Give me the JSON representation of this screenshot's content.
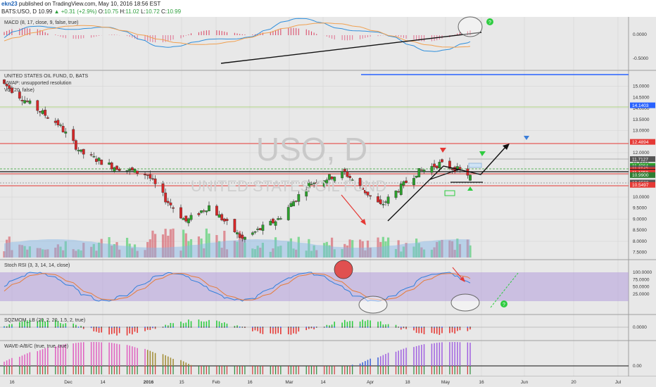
{
  "header": {
    "author": "ekn23",
    "published": "published on TradingView.com, May 10, 2016 18:56 EST",
    "symbol": "BATS:USO, D",
    "last": "10.99",
    "change": "+0.31 (+2.9%)",
    "open_label": "O:",
    "open": "10.75",
    "high_label": "H:",
    "high": "11.02",
    "low_label": "L:",
    "low": "10.72",
    "close_label": "C:",
    "close": "10.99"
  },
  "watermark": {
    "line1": "USO, D",
    "line2": "UNITED STATES OIL FUND"
  },
  "panes": {
    "macd": {
      "label": "MACD (8, 17, close, 9, false, true)",
      "ticks": [
        "0.0000",
        "-0.5000"
      ]
    },
    "price": {
      "labels": [
        "UNITED STATES OIL FUND, D, BATS",
        "VWAP: unsupported resolution",
        "Vol (20, false)"
      ],
      "ticks": [
        "15.0000",
        "14.5000",
        "14.0000",
        "13.5000",
        "13.0000",
        "12.5000",
        "12.0000",
        "11.5000",
        "11.0000",
        "10.5000",
        "10.0000",
        "9.5000",
        "9.0000",
        "8.5000",
        "8.0000",
        "7.5000"
      ],
      "tags": [
        {
          "text": "14.1403",
          "color": "#2962ff"
        },
        {
          "text": "12.4894",
          "color": "#e53935"
        },
        {
          "text": "11.7127",
          "color": "#555555"
        },
        {
          "text": "11.4064",
          "color": "#2ca02c"
        },
        {
          "text": "11.2945",
          "color": "#555555"
        },
        {
          "text": "11.2134",
          "color": "#e53935"
        },
        {
          "text": "11.1398",
          "color": "#111111"
        },
        {
          "text": "11.1058",
          "color": "#e53935"
        },
        {
          "text": "10.9900",
          "color": "#2e7d32"
        },
        {
          "text": "10.6530",
          "color": "#555555"
        },
        {
          "text": "10.5497",
          "color": "#e53935"
        }
      ]
    },
    "stoch": {
      "label": "Stoch RSI (3, 3, 14, 14, close)",
      "ticks": [
        "100.0000",
        "75.0000",
        "50.0000",
        "25.0000"
      ]
    },
    "sqz": {
      "label": "SQZMOM_LB (20, 2, 20, 1.5, 2, true)",
      "ticks": [
        "0.0000"
      ]
    },
    "wave": {
      "label": "WAVE-A/B/C (true, true, true)",
      "ticks": [
        "0.00"
      ]
    }
  },
  "time_axis": [
    "16",
    "Dec",
    "14",
    "2016",
    "15",
    "Feb",
    "16",
    "Mar",
    "14",
    "Apr",
    "18",
    "May",
    "16",
    "Jun",
    "20",
    "Jul"
  ],
  "colors": {
    "up": "#2ca02c",
    "down": "#d62728",
    "macd_line": "#2f8fdc",
    "signal_line": "#f0a050",
    "stoch_fill": "#b39ddb"
  },
  "chart_data": {
    "type": "candlestick",
    "title": "UNITED STATES OIL FUND, D, BATS",
    "symbol": "BATS:USO",
    "interval": "D",
    "ylim": [
      7.3,
      15.4
    ],
    "last_bar": {
      "open": 10.75,
      "high": 11.02,
      "low": 10.72,
      "close": 10.99,
      "change": 0.31,
      "change_pct": 2.9
    },
    "horizontal_levels": [
      14.1403,
      12.4894,
      11.7127,
      11.4064,
      11.2945,
      11.2134,
      11.1398,
      11.1058,
      10.99,
      10.653,
      10.5497
    ],
    "close_path": [
      {
        "date": "2015-11-10",
        "close": 15.1
      },
      {
        "date": "2015-11-20",
        "close": 14.2
      },
      {
        "date": "2015-12-01",
        "close": 13.3
      },
      {
        "date": "2015-12-10",
        "close": 12.0
      },
      {
        "date": "2015-12-22",
        "close": 11.4
      },
      {
        "date": "2016-01-05",
        "close": 11.0
      },
      {
        "date": "2016-01-12",
        "close": 9.9
      },
      {
        "date": "2016-01-20",
        "close": 8.9
      },
      {
        "date": "2016-01-29",
        "close": 9.6
      },
      {
        "date": "2016-02-11",
        "close": 8.1
      },
      {
        "date": "2016-02-25",
        "close": 9.0
      },
      {
        "date": "2016-03-08",
        "close": 10.6
      },
      {
        "date": "2016-03-22",
        "close": 11.1
      },
      {
        "date": "2016-04-05",
        "close": 9.6
      },
      {
        "date": "2016-04-19",
        "close": 11.1
      },
      {
        "date": "2016-04-28",
        "close": 11.5
      },
      {
        "date": "2016-05-06",
        "close": 11.2
      },
      {
        "date": "2016-05-10",
        "close": 10.99
      }
    ]
  }
}
